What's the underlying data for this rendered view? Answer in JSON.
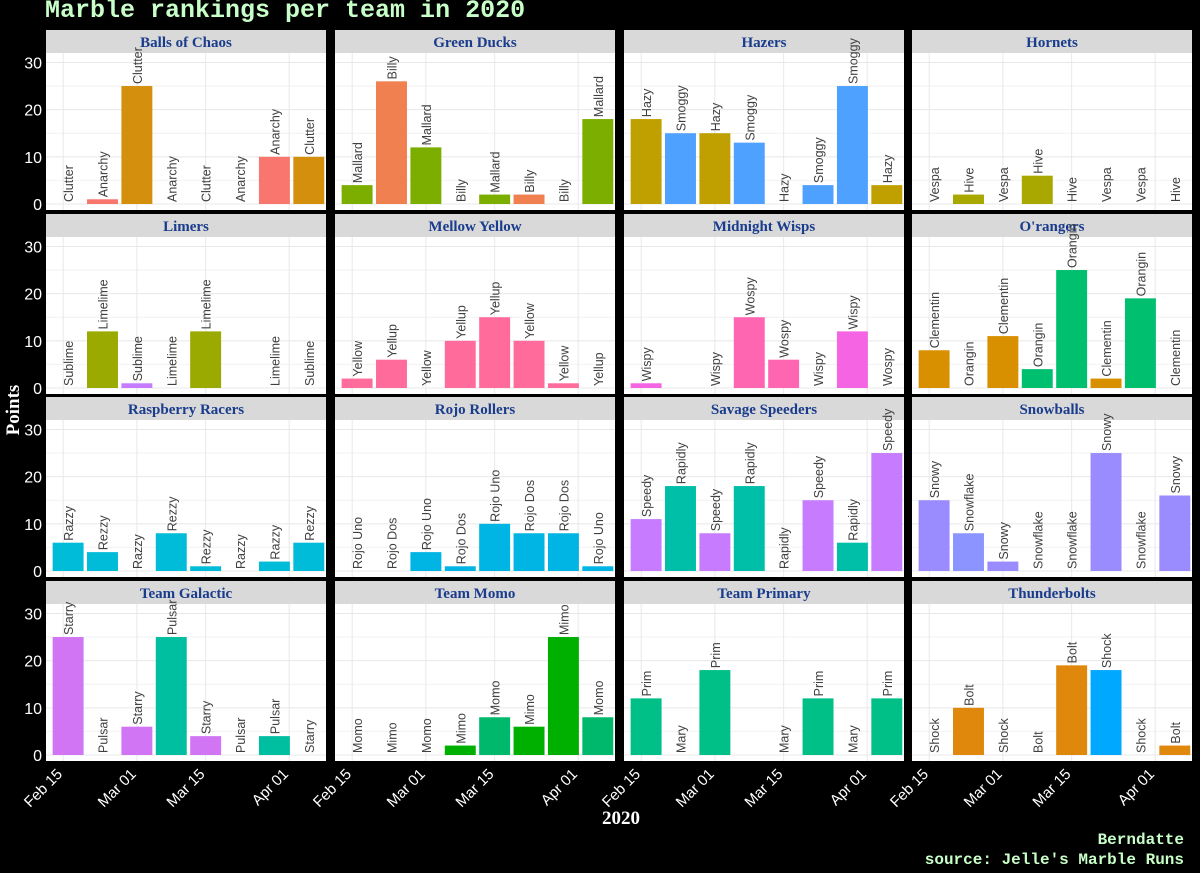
{
  "title": "Marble rankings per team in 2020",
  "credit_author": "Berndatte",
  "credit_source": "source: Jelle's Marble Runs",
  "colors": {
    "Clutter": "#d4900c",
    "Anarchy": "#f8766d",
    "Billy": "#f08050",
    "Mallard": "#7cae00",
    "Hazy": "#c0a000",
    "Smoggy": "#4ea1ff",
    "Vespa": "#b8a000",
    "Hive": "#a8a800",
    "Sublime": "#c77cff",
    "Limelime": "#9aaa00",
    "Yellow": "#ff6c9c",
    "Yellup": "#ff6c9c",
    "Wispy": "#f564e3",
    "Wospy": "#ff66b2",
    "Clementin": "#d89000",
    "Orangin": "#00c070",
    "Razzy": "#00bcd8",
    "Rezzy": "#00bcd8",
    "Rojo Uno": "#00b4e4",
    "Rojo Dos": "#00b4e4",
    "Speedy": "#c77cff",
    "Rapidly": "#00bfa8",
    "Snowy": "#9a8cff",
    "Snowflake": "#8c94ff",
    "Starry": "#d175f5",
    "Pulsar": "#00bfa0",
    "Momo": "#00b86b",
    "Mimo": "#00b000",
    "Prim": "#00c087",
    "Mary": "#00c087",
    "Shock": "#00a8ff",
    "Bolt": "#e0880c"
  },
  "chart_data": {
    "type": "bar",
    "title": "Marble rankings per team in 2020",
    "xlabel": "2020",
    "ylabel": "Points",
    "ylim": [
      0,
      32
    ],
    "yticks": [
      0,
      10,
      20,
      30
    ],
    "x_dates": [
      "Feb 16",
      "Feb 23",
      "Mar 01",
      "Mar 08",
      "Mar 15",
      "Mar 22",
      "Mar 29",
      "Apr 05"
    ],
    "xticks": [
      "Feb 15",
      "Mar 01",
      "Mar 15",
      "Apr 01"
    ],
    "facets": [
      {
        "team": "Balls of Chaos",
        "bars": [
          {
            "marble": "Clutter",
            "points": 0
          },
          {
            "marble": "Anarchy",
            "points": 1
          },
          {
            "marble": "Clutter",
            "points": 25
          },
          {
            "marble": "Anarchy",
            "points": 0
          },
          {
            "marble": "Clutter",
            "points": 0
          },
          {
            "marble": "Anarchy",
            "points": 0
          },
          {
            "marble": "Anarchy",
            "points": 10
          },
          {
            "marble": "Clutter",
            "points": 10
          }
        ]
      },
      {
        "team": "Green Ducks",
        "bars": [
          {
            "marble": "Mallard",
            "points": 4
          },
          {
            "marble": "Billy",
            "points": 26
          },
          {
            "marble": "Mallard",
            "points": 12
          },
          {
            "marble": "Billy",
            "points": 0
          },
          {
            "marble": "Mallard",
            "points": 2
          },
          {
            "marble": "Billy",
            "points": 2
          },
          {
            "marble": "Billy",
            "points": 0
          },
          {
            "marble": "Mallard",
            "points": 18
          }
        ]
      },
      {
        "team": "Hazers",
        "bars": [
          {
            "marble": "Hazy",
            "points": 18
          },
          {
            "marble": "Smoggy",
            "points": 15
          },
          {
            "marble": "Hazy",
            "points": 15
          },
          {
            "marble": "Smoggy",
            "points": 13
          },
          {
            "marble": "Hazy",
            "points": 0
          },
          {
            "marble": "Smoggy",
            "points": 4
          },
          {
            "marble": "Smoggy",
            "points": 25
          },
          {
            "marble": "Hazy",
            "points": 4
          }
        ]
      },
      {
        "team": "Hornets",
        "bars": [
          {
            "marble": "Vespa",
            "points": 0
          },
          {
            "marble": "Hive",
            "points": 2
          },
          {
            "marble": "Vespa",
            "points": 0
          },
          {
            "marble": "Hive",
            "points": 6
          },
          {
            "marble": "Hive",
            "points": 0
          },
          {
            "marble": "Vespa",
            "points": 0
          },
          {
            "marble": "Vespa",
            "points": 0
          },
          {
            "marble": "Hive",
            "points": 0
          }
        ]
      },
      {
        "team": "Limers",
        "bars": [
          {
            "marble": "Sublime",
            "points": 0
          },
          {
            "marble": "Limelime",
            "points": 12
          },
          {
            "marble": "Sublime",
            "points": 1
          },
          {
            "marble": "Limelime",
            "points": 0
          },
          {
            "marble": "Limelime",
            "points": 12
          },
          null,
          {
            "marble": "Limelime",
            "points": 0
          },
          {
            "marble": "Sublime",
            "points": 0
          }
        ]
      },
      {
        "team": "Mellow Yellow",
        "bars": [
          {
            "marble": "Yellow",
            "points": 2
          },
          {
            "marble": "Yellup",
            "points": 6
          },
          {
            "marble": "Yellow",
            "points": 0
          },
          {
            "marble": "Yellup",
            "points": 10
          },
          {
            "marble": "Yellup",
            "points": 15
          },
          {
            "marble": "Yellow",
            "points": 10
          },
          {
            "marble": "Yellow",
            "points": 1
          },
          {
            "marble": "Yellup",
            "points": 0
          }
        ]
      },
      {
        "team": "Midnight Wisps",
        "bars": [
          {
            "marble": "Wispy",
            "points": 1
          },
          null,
          {
            "marble": "Wispy",
            "points": 0
          },
          {
            "marble": "Wospy",
            "points": 15
          },
          {
            "marble": "Wospy",
            "points": 6
          },
          {
            "marble": "Wispy",
            "points": 0
          },
          {
            "marble": "Wispy",
            "points": 12
          },
          {
            "marble": "Wospy",
            "points": 0
          }
        ]
      },
      {
        "team": "O'rangers",
        "bars": [
          {
            "marble": "Clementin",
            "points": 8
          },
          {
            "marble": "Orangin",
            "points": 0
          },
          {
            "marble": "Clementin",
            "points": 11
          },
          {
            "marble": "Orangin",
            "points": 4
          },
          {
            "marble": "Orangin",
            "points": 25
          },
          {
            "marble": "Clementin",
            "points": 2
          },
          {
            "marble": "Orangin",
            "points": 19
          },
          {
            "marble": "Clementin",
            "points": 0
          }
        ]
      },
      {
        "team": "Raspberry Racers",
        "bars": [
          {
            "marble": "Razzy",
            "points": 6
          },
          {
            "marble": "Rezzy",
            "points": 4
          },
          {
            "marble": "Razzy",
            "points": 0
          },
          {
            "marble": "Rezzy",
            "points": 8
          },
          {
            "marble": "Rezzy",
            "points": 1
          },
          {
            "marble": "Razzy",
            "points": 0
          },
          {
            "marble": "Razzy",
            "points": 2
          },
          {
            "marble": "Rezzy",
            "points": 6
          }
        ]
      },
      {
        "team": "Rojo Rollers",
        "bars": [
          {
            "marble": "Rojo Uno",
            "points": 0
          },
          {
            "marble": "Rojo Dos",
            "points": 0
          },
          {
            "marble": "Rojo Uno",
            "points": 4
          },
          {
            "marble": "Rojo Dos",
            "points": 1
          },
          {
            "marble": "Rojo Uno",
            "points": 10
          },
          {
            "marble": "Rojo Dos",
            "points": 8
          },
          {
            "marble": "Rojo Dos",
            "points": 8
          },
          {
            "marble": "Rojo Uno",
            "points": 1
          }
        ]
      },
      {
        "team": "Savage Speeders",
        "bars": [
          {
            "marble": "Speedy",
            "points": 11
          },
          {
            "marble": "Rapidly",
            "points": 18
          },
          {
            "marble": "Speedy",
            "points": 8
          },
          {
            "marble": "Rapidly",
            "points": 18
          },
          {
            "marble": "Rapidly",
            "points": 0
          },
          {
            "marble": "Speedy",
            "points": 15
          },
          {
            "marble": "Rapidly",
            "points": 6
          },
          {
            "marble": "Speedy",
            "points": 25
          }
        ]
      },
      {
        "team": "Snowballs",
        "bars": [
          {
            "marble": "Snowy",
            "points": 15
          },
          {
            "marble": "Snowflake",
            "points": 8
          },
          {
            "marble": "Snowy",
            "points": 2
          },
          {
            "marble": "Snowflake",
            "points": 0
          },
          {
            "marble": "Snowflake",
            "points": 0
          },
          {
            "marble": "Snowy",
            "points": 25
          },
          {
            "marble": "Snowflake",
            "points": 0
          },
          {
            "marble": "Snowy",
            "points": 16
          }
        ]
      },
      {
        "team": "Team Galactic",
        "bars": [
          {
            "marble": "Starry",
            "points": 25
          },
          {
            "marble": "Pulsar",
            "points": 0
          },
          {
            "marble": "Starry",
            "points": 6
          },
          {
            "marble": "Pulsar",
            "points": 25
          },
          {
            "marble": "Starry",
            "points": 4
          },
          {
            "marble": "Pulsar",
            "points": 0
          },
          {
            "marble": "Pulsar",
            "points": 4
          },
          {
            "marble": "Starry",
            "points": 0
          }
        ]
      },
      {
        "team": "Team Momo",
        "bars": [
          {
            "marble": "Momo",
            "points": 0
          },
          {
            "marble": "Mimo",
            "points": 0
          },
          {
            "marble": "Momo",
            "points": 0
          },
          {
            "marble": "Mimo",
            "points": 2
          },
          {
            "marble": "Momo",
            "points": 8
          },
          {
            "marble": "Mimo",
            "points": 6
          },
          {
            "marble": "Mimo",
            "points": 25
          },
          {
            "marble": "Momo",
            "points": 8
          }
        ]
      },
      {
        "team": "Team Primary",
        "bars": [
          {
            "marble": "Prim",
            "points": 12
          },
          {
            "marble": "Mary",
            "points": 0
          },
          {
            "marble": "Prim",
            "points": 18
          },
          null,
          {
            "marble": "Mary",
            "points": 0
          },
          {
            "marble": "Prim",
            "points": 12
          },
          {
            "marble": "Mary",
            "points": 0
          },
          {
            "marble": "Prim",
            "points": 12
          }
        ]
      },
      {
        "team": "Thunderbolts",
        "bars": [
          {
            "marble": "Shock",
            "points": 0
          },
          {
            "marble": "Bolt",
            "points": 10
          },
          {
            "marble": "Shock",
            "points": 0
          },
          {
            "marble": "Bolt",
            "points": 0
          },
          {
            "marble": "Bolt",
            "points": 19
          },
          {
            "marble": "Shock",
            "points": 18
          },
          {
            "marble": "Shock",
            "points": 0
          },
          {
            "marble": "Bolt",
            "points": 2
          }
        ]
      }
    ]
  }
}
